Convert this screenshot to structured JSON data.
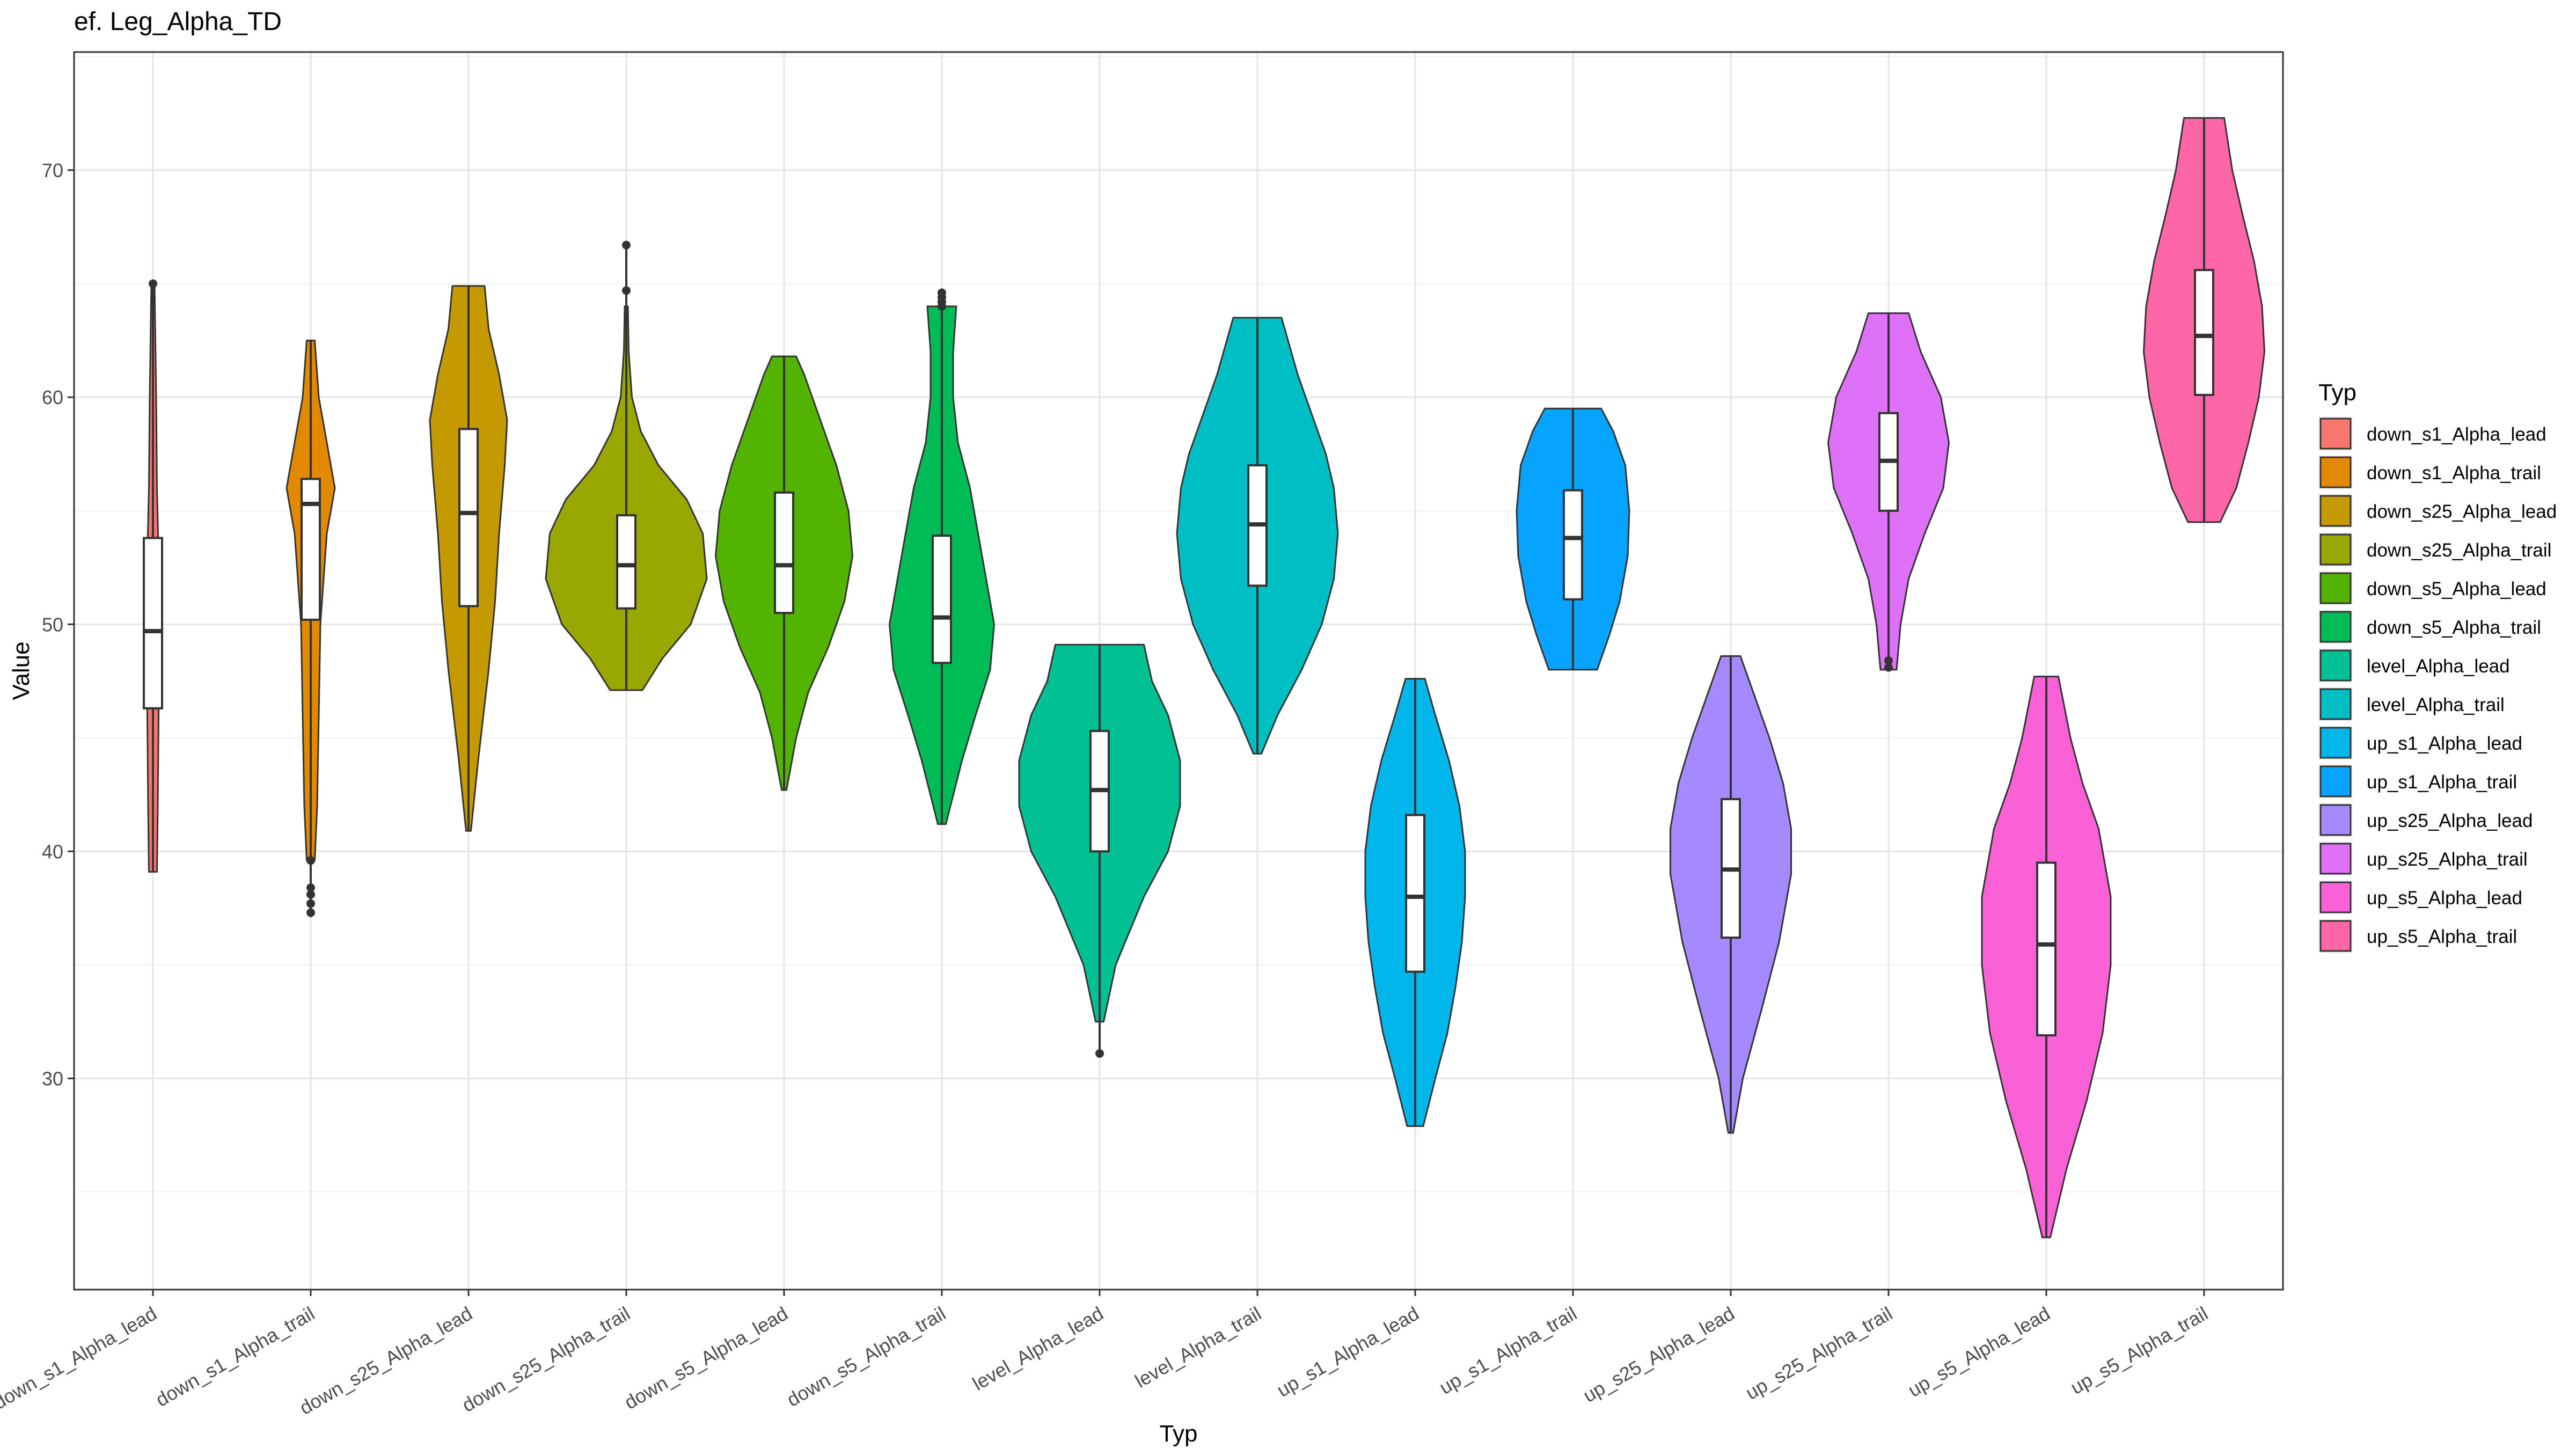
{
  "chart_data": {
    "type": "violin",
    "title": "ef. Leg_Alpha_TD",
    "xlabel": "Typ",
    "ylabel": "Value",
    "ylim": [
      20.7,
      75.2
    ],
    "yticks": [
      30,
      40,
      50,
      60,
      70
    ],
    "grid": true,
    "legend": {
      "title": "Typ",
      "position": "right"
    },
    "categories": [
      "down_s1_Alpha_lead",
      "down_s1_Alpha_trail",
      "down_s25_Alpha_lead",
      "down_s25_Alpha_trail",
      "down_s5_Alpha_lead",
      "down_s5_Alpha_trail",
      "level_Alpha_lead",
      "level_Alpha_trail",
      "up_s1_Alpha_lead",
      "up_s1_Alpha_trail",
      "up_s25_Alpha_lead",
      "up_s25_Alpha_trail",
      "up_s5_Alpha_lead",
      "up_s5_Alpha_trail"
    ],
    "colors": [
      "#F8766D",
      "#E38900",
      "#C49A00",
      "#99A800",
      "#53B400",
      "#00BC56",
      "#00C094",
      "#00BFC4",
      "#00B6EB",
      "#06A4FF",
      "#A58AFF",
      "#DF70F8",
      "#FB61D7",
      "#FF66A8"
    ],
    "series": [
      {
        "name": "down_s1_Alpha_lead",
        "min": 39.1,
        "q1": 46.3,
        "median": 49.7,
        "q3": 53.8,
        "max": 65.0,
        "outliers": [
          65.0
        ],
        "density": [
          [
            39.1,
            0.05
          ],
          [
            42,
            0.06
          ],
          [
            46,
            0.07
          ],
          [
            49.7,
            0.08
          ],
          [
            53,
            0.07
          ],
          [
            56,
            0.05
          ],
          [
            60,
            0.04
          ],
          [
            65,
            0.02
          ]
        ]
      },
      {
        "name": "down_s1_Alpha_trail",
        "min": 37.1,
        "q1": 50.2,
        "median": 55.3,
        "q3": 56.4,
        "max": 62.5,
        "outliers": [
          39.6,
          38.4,
          38.1,
          37.7,
          37.3
        ],
        "density": [
          [
            39.6,
            0.05
          ],
          [
            42,
            0.08
          ],
          [
            46,
            0.1
          ],
          [
            50,
            0.12
          ],
          [
            54,
            0.2
          ],
          [
            56,
            0.3
          ],
          [
            58,
            0.2
          ],
          [
            60,
            0.1
          ],
          [
            62.5,
            0.05
          ]
        ]
      },
      {
        "name": "down_s25_Alpha_lead",
        "min": 40.9,
        "q1": 50.8,
        "median": 54.9,
        "q3": 58.6,
        "max": 64.9,
        "outliers": [],
        "density": [
          [
            40.9,
            0.03
          ],
          [
            44,
            0.12
          ],
          [
            48,
            0.25
          ],
          [
            51,
            0.33
          ],
          [
            54,
            0.38
          ],
          [
            57,
            0.45
          ],
          [
            59,
            0.48
          ],
          [
            61,
            0.38
          ],
          [
            63,
            0.25
          ],
          [
            64.9,
            0.2
          ]
        ]
      },
      {
        "name": "down_s25_Alpha_trail",
        "min": 47.1,
        "q1": 50.7,
        "median": 52.6,
        "q3": 54.8,
        "max": 66.7,
        "outliers": [
          64.7,
          66.7
        ],
        "density": [
          [
            47.1,
            0.2
          ],
          [
            48.5,
            0.45
          ],
          [
            50,
            0.8
          ],
          [
            52,
            1.0
          ],
          [
            54,
            0.95
          ],
          [
            55.5,
            0.75
          ],
          [
            57,
            0.4
          ],
          [
            58.5,
            0.18
          ],
          [
            60,
            0.07
          ],
          [
            62,
            0.03
          ],
          [
            64,
            0.02
          ]
        ]
      },
      {
        "name": "down_s5_Alpha_lead",
        "min": 42.7,
        "q1": 50.5,
        "median": 52.6,
        "q3": 55.8,
        "max": 61.8,
        "outliers": [],
        "density": [
          [
            42.7,
            0.03
          ],
          [
            45,
            0.15
          ],
          [
            47,
            0.3
          ],
          [
            49,
            0.55
          ],
          [
            51,
            0.75
          ],
          [
            53,
            0.85
          ],
          [
            55,
            0.8
          ],
          [
            57,
            0.65
          ],
          [
            59,
            0.45
          ],
          [
            61,
            0.25
          ],
          [
            61.8,
            0.15
          ]
        ]
      },
      {
        "name": "down_s5_Alpha_trail",
        "min": 41.2,
        "q1": 48.3,
        "median": 50.3,
        "q3": 53.9,
        "max": 64.6,
        "outliers": [
          64.6,
          64.4,
          64.2,
          64.0
        ],
        "density": [
          [
            41.2,
            0.05
          ],
          [
            44,
            0.25
          ],
          [
            46,
            0.42
          ],
          [
            48,
            0.6
          ],
          [
            50,
            0.65
          ],
          [
            52,
            0.55
          ],
          [
            54,
            0.45
          ],
          [
            56,
            0.35
          ],
          [
            58,
            0.2
          ],
          [
            60,
            0.14
          ],
          [
            62,
            0.14
          ],
          [
            64,
            0.18
          ]
        ]
      },
      {
        "name": "level_Alpha_lead",
        "min": 31.1,
        "q1": 40.0,
        "median": 42.7,
        "q3": 45.3,
        "max": 49.1,
        "outliers": [
          31.1
        ],
        "density": [
          [
            32.5,
            0.05
          ],
          [
            35,
            0.2
          ],
          [
            38,
            0.55
          ],
          [
            40,
            0.85
          ],
          [
            42,
            1.0
          ],
          [
            44,
            1.0
          ],
          [
            46,
            0.85
          ],
          [
            47.5,
            0.65
          ],
          [
            49.1,
            0.55
          ]
        ]
      },
      {
        "name": "level_Alpha_trail",
        "min": 44.3,
        "q1": 51.7,
        "median": 54.4,
        "q3": 57.0,
        "max": 63.5,
        "outliers": [],
        "density": [
          [
            44.3,
            0.05
          ],
          [
            46,
            0.25
          ],
          [
            48,
            0.55
          ],
          [
            50,
            0.8
          ],
          [
            52,
            0.95
          ],
          [
            54,
            1.0
          ],
          [
            56,
            0.95
          ],
          [
            57.5,
            0.85
          ],
          [
            59,
            0.7
          ],
          [
            61,
            0.5
          ],
          [
            63.5,
            0.3
          ]
        ]
      },
      {
        "name": "up_s1_Alpha_lead",
        "min": 27.9,
        "q1": 34.7,
        "median": 38.0,
        "q3": 41.6,
        "max": 47.6,
        "outliers": [],
        "density": [
          [
            27.9,
            0.1
          ],
          [
            30,
            0.25
          ],
          [
            32,
            0.4
          ],
          [
            34,
            0.5
          ],
          [
            36,
            0.58
          ],
          [
            38,
            0.62
          ],
          [
            40,
            0.62
          ],
          [
            42,
            0.55
          ],
          [
            44,
            0.42
          ],
          [
            46,
            0.25
          ],
          [
            47.6,
            0.12
          ]
        ]
      },
      {
        "name": "up_s1_Alpha_trail",
        "min": 48.0,
        "q1": 51.1,
        "median": 53.8,
        "q3": 55.9,
        "max": 59.5,
        "outliers": [],
        "density": [
          [
            48.0,
            0.3
          ],
          [
            49.5,
            0.45
          ],
          [
            51,
            0.58
          ],
          [
            53,
            0.68
          ],
          [
            55,
            0.7
          ],
          [
            57,
            0.65
          ],
          [
            58.5,
            0.5
          ],
          [
            59.5,
            0.35
          ]
        ]
      },
      {
        "name": "up_s25_Alpha_lead",
        "min": 27.6,
        "q1": 36.2,
        "median": 39.2,
        "q3": 42.3,
        "max": 48.6,
        "outliers": [],
        "density": [
          [
            27.6,
            0.03
          ],
          [
            30,
            0.15
          ],
          [
            33,
            0.38
          ],
          [
            36,
            0.6
          ],
          [
            39,
            0.75
          ],
          [
            41,
            0.75
          ],
          [
            43,
            0.65
          ],
          [
            45,
            0.48
          ],
          [
            47,
            0.28
          ],
          [
            48.6,
            0.12
          ]
        ]
      },
      {
        "name": "up_s25_Alpha_trail",
        "min": 48.0,
        "q1": 55.0,
        "median": 57.2,
        "q3": 59.3,
        "max": 63.7,
        "outliers": [
          48.1,
          48.4
        ],
        "density": [
          [
            48.0,
            0.1
          ],
          [
            50,
            0.15
          ],
          [
            52,
            0.25
          ],
          [
            54,
            0.45
          ],
          [
            56,
            0.68
          ],
          [
            58,
            0.75
          ],
          [
            60,
            0.65
          ],
          [
            62,
            0.4
          ],
          [
            63.7,
            0.25
          ]
        ]
      },
      {
        "name": "up_s5_Alpha_lead",
        "min": 23.0,
        "q1": 31.9,
        "median": 35.9,
        "q3": 39.5,
        "max": 47.7,
        "outliers": [],
        "density": [
          [
            23.0,
            0.05
          ],
          [
            26,
            0.25
          ],
          [
            29,
            0.5
          ],
          [
            32,
            0.7
          ],
          [
            35,
            0.8
          ],
          [
            38,
            0.8
          ],
          [
            41,
            0.65
          ],
          [
            43,
            0.45
          ],
          [
            45,
            0.3
          ],
          [
            47.7,
            0.15
          ]
        ]
      },
      {
        "name": "up_s5_Alpha_trail",
        "min": 54.5,
        "q1": 60.1,
        "median": 62.7,
        "q3": 65.6,
        "max": 72.3,
        "outliers": [],
        "density": [
          [
            54.5,
            0.2
          ],
          [
            56,
            0.4
          ],
          [
            58,
            0.55
          ],
          [
            60,
            0.68
          ],
          [
            62,
            0.75
          ],
          [
            64,
            0.72
          ],
          [
            66,
            0.62
          ],
          [
            68,
            0.48
          ],
          [
            70,
            0.35
          ],
          [
            72.3,
            0.25
          ]
        ]
      }
    ]
  }
}
